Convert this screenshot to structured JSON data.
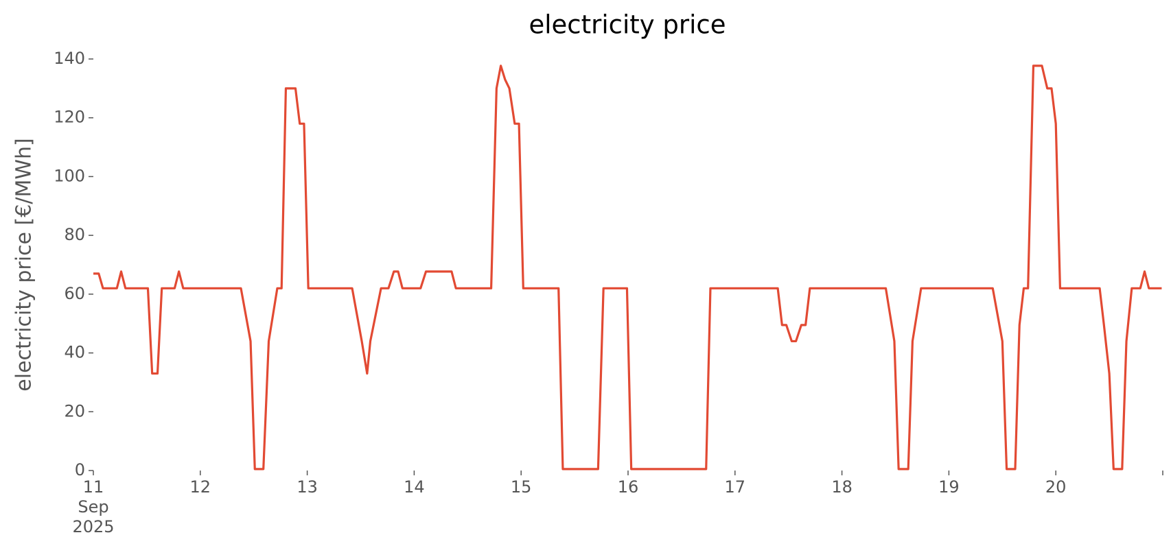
{
  "chart_data": {
    "type": "line",
    "title": "electricity price",
    "ylabel": "electricity price [€/MWh]",
    "x": [
      11.0,
      11.05,
      11.09,
      11.22,
      11.26,
      11.3,
      11.51,
      11.55,
      11.6,
      11.64,
      11.76,
      11.8,
      11.84,
      12.38,
      12.47,
      12.51,
      12.59,
      12.64,
      12.72,
      12.76,
      12.8,
      12.89,
      12.93,
      12.97,
      13.01,
      13.42,
      13.51,
      13.56,
      13.59,
      13.69,
      13.76,
      13.81,
      13.85,
      13.89,
      14.06,
      14.11,
      14.35,
      14.39,
      14.72,
      14.77,
      14.81,
      14.85,
      14.89,
      14.94,
      14.98,
      15.02,
      15.35,
      15.39,
      15.72,
      15.77,
      15.99,
      16.03,
      16.73,
      16.77,
      17.4,
      17.44,
      17.48,
      17.53,
      17.57,
      17.62,
      17.66,
      17.7,
      18.41,
      18.49,
      18.53,
      18.62,
      18.66,
      18.74,
      19.41,
      19.5,
      19.54,
      19.62,
      19.66,
      19.7,
      19.74,
      19.79,
      19.87,
      19.92,
      19.96,
      20.0,
      20.04,
      20.41,
      20.45,
      20.5,
      20.54,
      20.62,
      20.66,
      20.71,
      20.79,
      20.83,
      20.87,
      20.99
    ],
    "values": [
      67,
      67,
      62,
      62,
      67.7,
      62,
      62,
      33,
      33,
      62,
      62,
      67.7,
      62,
      62,
      44,
      0.5,
      0.5,
      44,
      62,
      62,
      130,
      130,
      118,
      118,
      62,
      62,
      44,
      33,
      44,
      62,
      62,
      67.7,
      67.7,
      62,
      62,
      67.7,
      67.7,
      62,
      62,
      130,
      137.7,
      133,
      130,
      118,
      118,
      62,
      62,
      0.5,
      0.5,
      62,
      62,
      0.5,
      0.5,
      62,
      62,
      49.5,
      49.5,
      44,
      44,
      49.5,
      49.5,
      62,
      62,
      44,
      0.5,
      0.5,
      44,
      62,
      62,
      44,
      0.5,
      0.5,
      49.5,
      62,
      62,
      137.7,
      137.7,
      130,
      130,
      118,
      62,
      62,
      49.5,
      33,
      0.5,
      0.5,
      44,
      62,
      62,
      67.7,
      62,
      62
    ],
    "color": "#e24a33",
    "xlim": [
      11,
      21
    ],
    "xticks": [
      {
        "value": 11,
        "label": "11\nSep\n2025"
      },
      12,
      13,
      14,
      15,
      16,
      17,
      18,
      19,
      20
    ],
    "ylim": [
      0,
      140
    ],
    "yticks": [
      0,
      20,
      40,
      60,
      80,
      100,
      120,
      140
    ],
    "grid": false
  }
}
